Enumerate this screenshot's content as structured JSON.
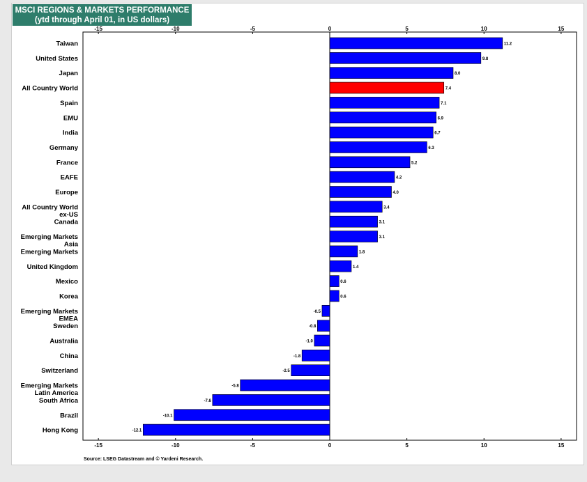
{
  "title": "MSCI REGIONS & MARKETS PERFORMANCE",
  "subtitle": "(ytd through April 01, in US dollars)",
  "source": "Source: LSEG Datastream and © Yardeni Research.",
  "colors": {
    "bar": "#0000ff",
    "highlight": "#ff0000",
    "title_bg": "#2e7d6b",
    "title_text": "#ffffff"
  },
  "chart_data": {
    "type": "bar",
    "orientation": "horizontal",
    "title": "MSCI REGIONS & MARKETS PERFORMANCE",
    "subtitle": "(ytd through April 01, in US dollars)",
    "xlim": [
      -16,
      16
    ],
    "xticks": [
      -15,
      -10,
      -5,
      0,
      5,
      10,
      15
    ],
    "grid": false,
    "highlight": "All Country World",
    "categories": [
      [
        "Taiwan"
      ],
      [
        "United States"
      ],
      [
        "Japan"
      ],
      [
        "All Country World"
      ],
      [
        "Spain"
      ],
      [
        "EMU"
      ],
      [
        "India"
      ],
      [
        "Germany"
      ],
      [
        "France"
      ],
      [
        "EAFE"
      ],
      [
        "Europe"
      ],
      [
        "All Country World",
        "ex-US"
      ],
      [
        "Canada"
      ],
      [
        "Emerging Markets",
        "Asia"
      ],
      [
        "Emerging Markets"
      ],
      [
        "United Kingdom"
      ],
      [
        "Mexico"
      ],
      [
        "Korea"
      ],
      [
        "Emerging Markets",
        "EMEA"
      ],
      [
        "Sweden"
      ],
      [
        "Australia"
      ],
      [
        "China"
      ],
      [
        "Switzerland"
      ],
      [
        "Emerging Markets",
        "Latin America"
      ],
      [
        "South Africa"
      ],
      [
        "Brazil"
      ],
      [
        "Hong Kong"
      ]
    ],
    "values": [
      11.2,
      9.8,
      8.0,
      7.4,
      7.1,
      6.9,
      6.7,
      6.3,
      5.2,
      4.2,
      4.0,
      3.4,
      3.1,
      3.1,
      1.8,
      1.4,
      0.6,
      0.6,
      -0.5,
      -0.8,
      -1.0,
      -1.8,
      -2.5,
      -5.8,
      -7.6,
      -10.1,
      -12.1
    ],
    "labels": [
      "11.2",
      "9.8",
      "8.0",
      "7.4",
      "7.1",
      "6.9",
      "6.7",
      "6.3",
      "5.2",
      "4.2",
      "4.0",
      "3.4",
      "3.1",
      "3.1",
      "1.8",
      "1.4",
      "0.6",
      "0.6",
      "-0.5",
      "-0.8",
      "-1.0",
      "-1.8",
      "-2.5",
      "-5.8",
      "-7.6",
      "-10.1",
      "-12.1"
    ]
  }
}
